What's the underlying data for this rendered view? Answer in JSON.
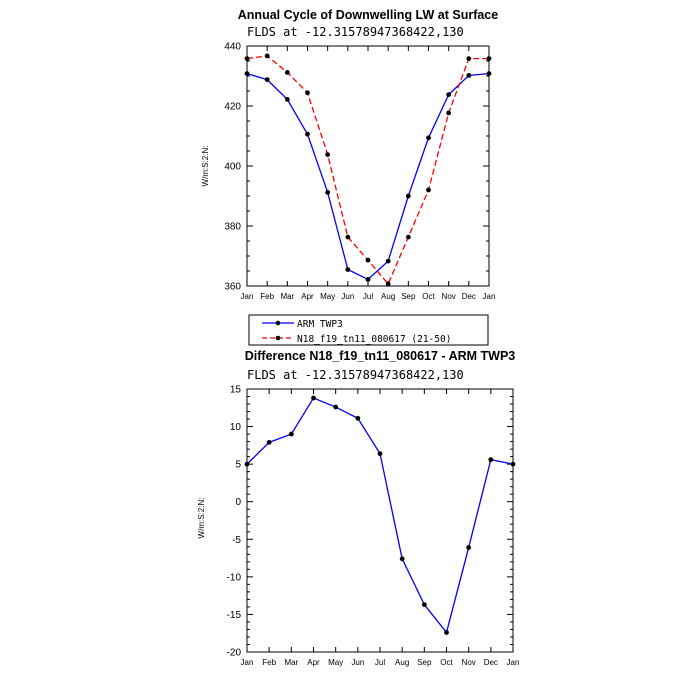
{
  "chart_data": [
    {
      "type": "line",
      "title": "Annual Cycle of Downwelling LW at Surface",
      "subtitle": "FLDS at -12.31578947368422,130",
      "xlabel": "",
      "ylabel": "W/m:S:2:N:",
      "categories": [
        "Jan",
        "Feb",
        "Mar",
        "Apr",
        "May",
        "Jun",
        "Jul",
        "Aug",
        "Sep",
        "Oct",
        "Nov",
        "Dec",
        "Jan"
      ],
      "ylim": [
        360,
        440
      ],
      "yticks": [
        360,
        380,
        400,
        420,
        440
      ],
      "series": [
        {
          "name": "ARM TWP3",
          "color": "#0000ff",
          "dash": "solid",
          "values": [
            430.8,
            428.8,
            422.2,
            410.6,
            391.2,
            365.5,
            362.2,
            368.3,
            390.0,
            409.4,
            423.8,
            430.2,
            430.8
          ]
        },
        {
          "name": "N18_f19_tn11_080617 (21-50)",
          "color": "#ff0000",
          "dash": "dashed",
          "values": [
            435.8,
            436.7,
            431.2,
            424.4,
            403.8,
            376.3,
            368.6,
            360.7,
            376.3,
            392.0,
            417.7,
            435.8,
            435.8
          ]
        }
      ],
      "legend": {
        "position": "bottom-left"
      }
    },
    {
      "type": "line",
      "title": "Difference N18_f19_tn11_080617 - ARM TWP3",
      "subtitle": "FLDS at -12.31578947368422,130",
      "xlabel": "",
      "ylabel": "W/m:S:2:N:",
      "categories": [
        "Jan",
        "Feb",
        "Mar",
        "Apr",
        "May",
        "Jun",
        "Jul",
        "Aug",
        "Sep",
        "Oct",
        "Nov",
        "Dec",
        "Jan"
      ],
      "ylim": [
        -20,
        15
      ],
      "yticks": [
        -20,
        -15,
        -10,
        -5,
        0,
        5,
        10,
        15
      ],
      "series": [
        {
          "name": "Difference",
          "color": "#0000ff",
          "dash": "solid",
          "values": [
            5.0,
            7.9,
            9.0,
            13.8,
            12.6,
            11.1,
            6.4,
            -7.6,
            -13.7,
            -17.4,
            -6.1,
            5.6,
            5.0
          ]
        }
      ]
    }
  ]
}
